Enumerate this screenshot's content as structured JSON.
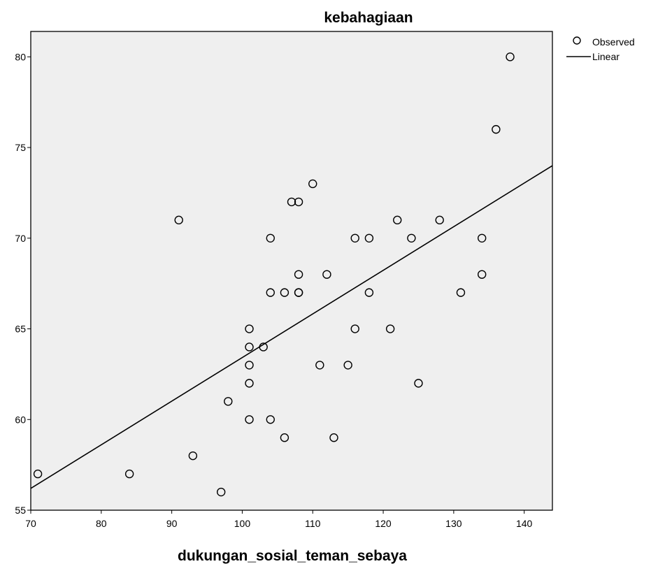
{
  "chart_data": {
    "type": "scatter",
    "title": "kebahagiaan",
    "xlabel": "dukungan_sosial_teman_sebaya",
    "ylabel": "",
    "xlim": [
      70,
      144
    ],
    "ylim": [
      55,
      81.4
    ],
    "x_ticks": [
      70,
      80,
      90,
      100,
      110,
      120,
      130,
      140
    ],
    "y_ticks": [
      55,
      60,
      65,
      70,
      75,
      80
    ],
    "grid": false,
    "legend_position": "top-right",
    "legend": [
      {
        "label": "Observed",
        "marker": "circle"
      },
      {
        "label": "Linear",
        "marker": "line"
      }
    ],
    "series": [
      {
        "name": "Observed",
        "type": "scatter",
        "points": [
          [
            71,
            57
          ],
          [
            84,
            57
          ],
          [
            91,
            71
          ],
          [
            93,
            58
          ],
          [
            97,
            56
          ],
          [
            98,
            61
          ],
          [
            101,
            65
          ],
          [
            101,
            64
          ],
          [
            101,
            63
          ],
          [
            101,
            62
          ],
          [
            101,
            60
          ],
          [
            103,
            64
          ],
          [
            104,
            70
          ],
          [
            104,
            67
          ],
          [
            104,
            60
          ],
          [
            106,
            67
          ],
          [
            106,
            59
          ],
          [
            107,
            72
          ],
          [
            108,
            72
          ],
          [
            108,
            68
          ],
          [
            108,
            67
          ],
          [
            108,
            67
          ],
          [
            110,
            73
          ],
          [
            111,
            63
          ],
          [
            112,
            68
          ],
          [
            113,
            59
          ],
          [
            115,
            63
          ],
          [
            116,
            70
          ],
          [
            116,
            65
          ],
          [
            118,
            70
          ],
          [
            118,
            67
          ],
          [
            121,
            65
          ],
          [
            122,
            71
          ],
          [
            124,
            70
          ],
          [
            125,
            62
          ],
          [
            128,
            71
          ],
          [
            131,
            67
          ],
          [
            134,
            70
          ],
          [
            134,
            68
          ],
          [
            136,
            76
          ],
          [
            138,
            80
          ]
        ]
      },
      {
        "name": "Linear",
        "type": "line",
        "points": [
          [
            70,
            56.2
          ],
          [
            144,
            74
          ]
        ]
      }
    ]
  }
}
